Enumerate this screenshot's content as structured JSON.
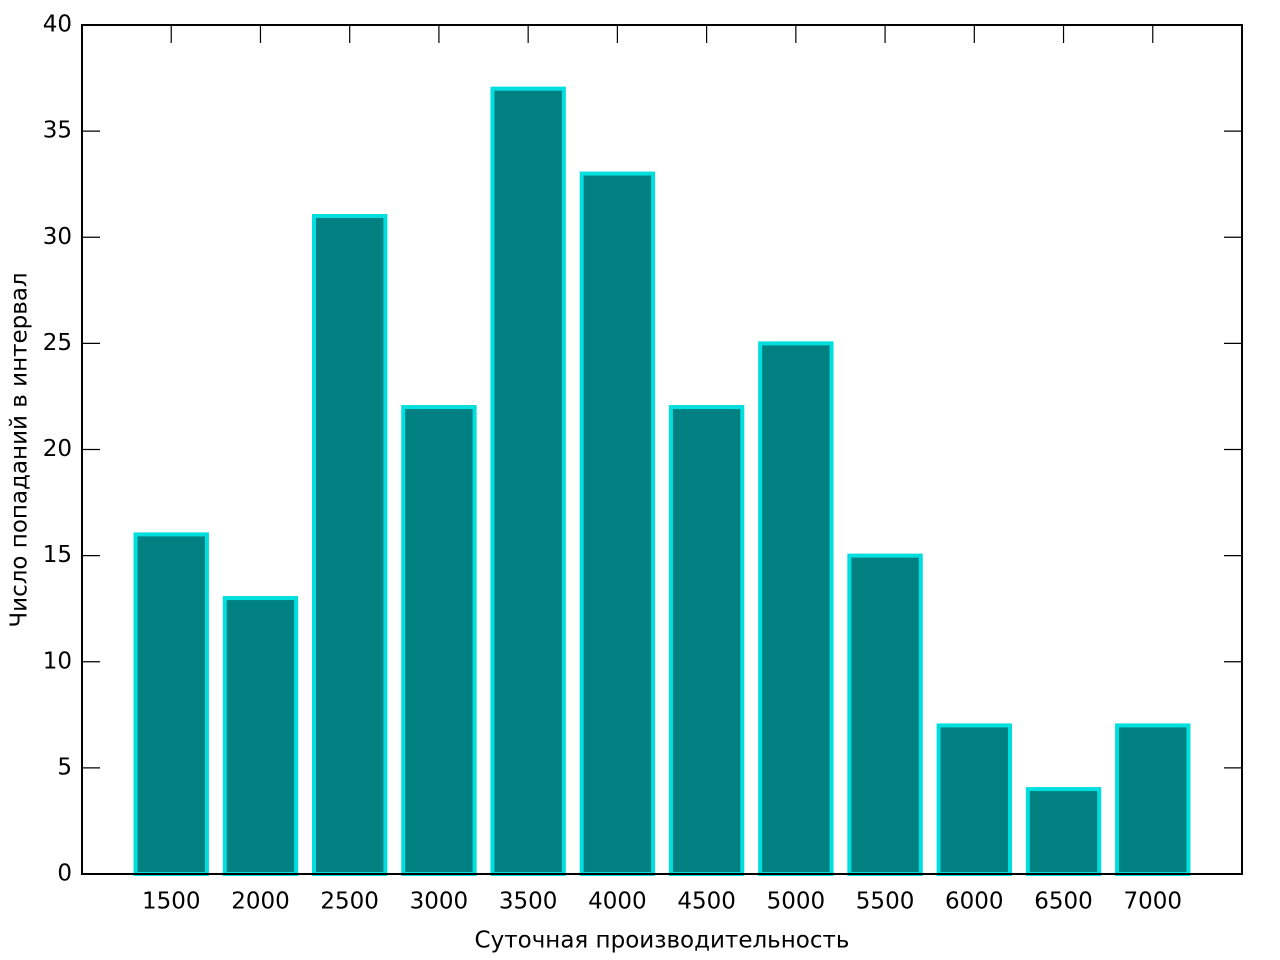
{
  "chart_data": {
    "type": "bar",
    "x_label": "Суточная производительность",
    "y_label": "Число попаданий в интервал",
    "x": [
      1500,
      2000,
      2500,
      3000,
      3500,
      4000,
      4500,
      5000,
      5500,
      6000,
      6500,
      7000
    ],
    "values": [
      16,
      13,
      31,
      22,
      37,
      33,
      22,
      25,
      15,
      7,
      4,
      7
    ],
    "color": "#008080",
    "edge_color": "#00dede",
    "xlim": [
      1000,
      7500
    ],
    "xticks": [
      1500,
      2000,
      2500,
      3000,
      3500,
      4000,
      4500,
      5000,
      5500,
      6000,
      6500,
      7000
    ],
    "ylim": [
      0,
      40
    ],
    "yticks": [
      0,
      5,
      10,
      15,
      20,
      25,
      30,
      35,
      40
    ]
  }
}
